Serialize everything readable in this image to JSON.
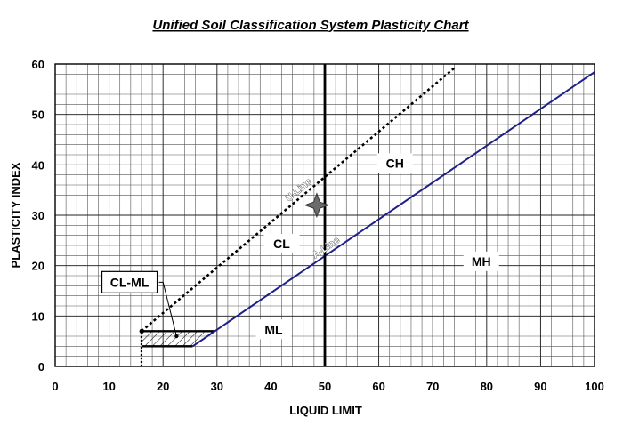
{
  "chart_data": {
    "type": "line",
    "title": "Unified Soil Classification System Plasticity Chart",
    "xlabel": "LIQUID LIMIT",
    "ylabel": "PLASTICITY INDEX",
    "xlim": [
      0,
      100
    ],
    "ylim": [
      0,
      60
    ],
    "x_ticks": [
      0,
      10,
      20,
      30,
      40,
      50,
      60,
      70,
      80,
      90,
      100
    ],
    "y_ticks": [
      0,
      10,
      20,
      30,
      40,
      50,
      60
    ],
    "grid": true,
    "series": [
      {
        "name": "U-Line",
        "style": "dotted",
        "color": "#000000",
        "x": [
          16,
          74
        ],
        "y": [
          7,
          59.2
        ]
      },
      {
        "name": "A-Line",
        "style": "solid",
        "color": "#1f1f8a",
        "x": [
          25.5,
          100
        ],
        "y": [
          4,
          58.4
        ]
      },
      {
        "name": "",
        "style": "solid",
        "color": "#000000",
        "x": [
          50,
          50
        ],
        "y": [
          0,
          60
        ]
      }
    ],
    "regions": [
      {
        "label": "CH",
        "x": 63,
        "y": 40
      },
      {
        "label": "CL",
        "x": 42,
        "y": 24
      },
      {
        "label": "MH",
        "x": 79,
        "y": 20.5
      },
      {
        "label": "ML",
        "x": 40.5,
        "y": 7
      }
    ],
    "callout": {
      "label": "CL-ML",
      "box_x": 9,
      "box_y": 16,
      "target_x": 22.5,
      "target_y": 6
    },
    "marker": {
      "shape": "star",
      "color": "#6b6b6b",
      "x": 48.5,
      "y": 32
    },
    "cl_ml_zone": {
      "x_start": 16,
      "x_end": 29.7,
      "y_low": 4,
      "y_high": 7
    }
  }
}
